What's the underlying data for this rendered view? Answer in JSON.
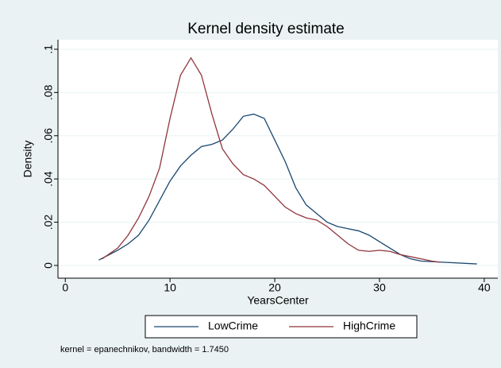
{
  "chart_data": {
    "type": "line",
    "title": "Kernel density estimate",
    "x_label": "YearsCenter",
    "y_label": "Density",
    "note": "kernel = epanechnikov, bandwidth = 1.7450",
    "xlim": [
      -0.7,
      41.3
    ],
    "xticks": [
      0,
      10,
      20,
      30,
      40
    ],
    "ylim": [
      -0.0059,
      0.1044
    ],
    "yticks": [
      0,
      {
        "value": 0.02,
        "label": ".02"
      },
      {
        "value": 0.04,
        "label": ".04"
      },
      {
        "value": 0.06,
        "label": ".06"
      },
      {
        "value": 0.08,
        "label": ".08"
      },
      {
        "value": 0.1,
        "label": ".1"
      }
    ],
    "grid": true,
    "legend": "bottom",
    "series": [
      {
        "name": "LowCrime",
        "color": "#1a476f",
        "x": [
          3.2,
          5,
          6,
          7,
          8,
          9,
          10,
          11,
          12,
          13,
          14,
          15,
          16,
          17,
          18,
          19,
          20,
          21,
          22,
          23,
          24,
          25,
          26,
          27,
          28,
          29,
          30,
          31,
          32,
          33,
          34,
          36,
          39.3
        ],
        "values": [
          0.0025,
          0.007,
          0.01,
          0.014,
          0.021,
          0.03,
          0.039,
          0.046,
          0.051,
          0.055,
          0.056,
          0.058,
          0.063,
          0.069,
          0.07,
          0.068,
          0.058,
          0.048,
          0.036,
          0.028,
          0.024,
          0.02,
          0.018,
          0.017,
          0.016,
          0.014,
          0.011,
          0.008,
          0.005,
          0.003,
          0.002,
          0.0015,
          0.0007
        ]
      },
      {
        "name": "HighCrime",
        "color": "#90353b",
        "x": [
          3.5,
          5,
          6,
          7,
          8,
          9,
          10,
          11,
          12,
          13,
          14,
          15,
          16,
          17,
          18,
          19,
          20,
          21,
          22,
          23,
          24,
          25,
          26,
          27,
          28,
          29,
          30,
          31,
          32,
          33,
          34,
          35,
          35.8
        ],
        "values": [
          0.003,
          0.008,
          0.014,
          0.022,
          0.032,
          0.045,
          0.068,
          0.088,
          0.096,
          0.088,
          0.07,
          0.054,
          0.047,
          0.042,
          0.04,
          0.037,
          0.032,
          0.027,
          0.024,
          0.022,
          0.021,
          0.018,
          0.014,
          0.01,
          0.007,
          0.0065,
          0.007,
          0.0065,
          0.005,
          0.004,
          0.003,
          0.002,
          0.0015
        ]
      }
    ]
  }
}
